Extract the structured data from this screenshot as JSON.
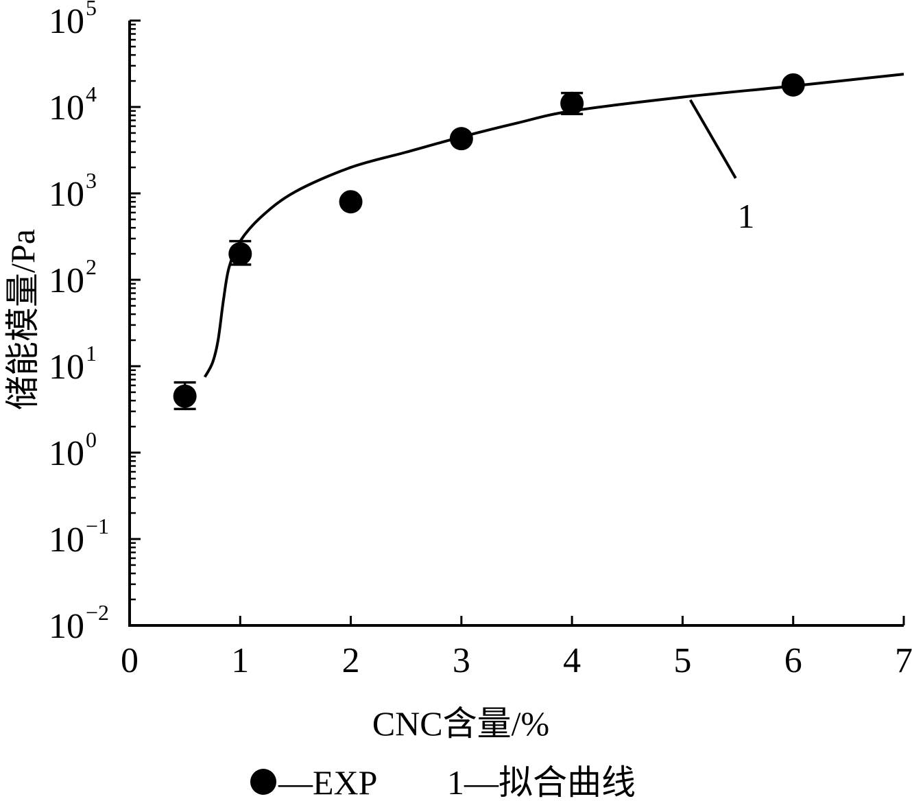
{
  "chart_data": {
    "type": "scatter",
    "xlabel": "CNC含量/%",
    "ylabel": "储能模量/Pa",
    "xlim": [
      0,
      7
    ],
    "ylim": [
      0.01,
      100000
    ],
    "yscale": "log",
    "x_ticks": [
      0,
      1,
      2,
      3,
      4,
      5,
      6,
      7
    ],
    "y_ticks": [
      {
        "value": 0.01,
        "mantissa": "10",
        "exponent": "−2"
      },
      {
        "value": 0.1,
        "mantissa": "10",
        "exponent": "−1"
      },
      {
        "value": 1,
        "mantissa": "10",
        "exponent": "0"
      },
      {
        "value": 10,
        "mantissa": "10",
        "exponent": "1"
      },
      {
        "value": 100,
        "mantissa": "10",
        "exponent": "2"
      },
      {
        "value": 1000,
        "mantissa": "10",
        "exponent": "3"
      },
      {
        "value": 10000,
        "mantissa": "10",
        "exponent": "4"
      },
      {
        "value": 100000,
        "mantissa": "10",
        "exponent": "5"
      }
    ],
    "series": [
      {
        "name": "EXP",
        "marker": "filled-circle",
        "points": [
          {
            "x": 0.5,
            "y": 4.5,
            "err_low": 3.2,
            "err_high": 6.5
          },
          {
            "x": 1.0,
            "y": 200,
            "err_low": 150,
            "err_high": 280
          },
          {
            "x": 2.0,
            "y": 800
          },
          {
            "x": 3.0,
            "y": 4300
          },
          {
            "x": 4.0,
            "y": 11000,
            "err_low": 8300,
            "err_high": 14500
          },
          {
            "x": 6.0,
            "y": 18000
          }
        ]
      },
      {
        "name": "拟合曲线",
        "label": "1",
        "line": "solid",
        "points": [
          {
            "x": 0.68,
            "y": 7.5
          },
          {
            "x": 0.75,
            "y": 11
          },
          {
            "x": 0.8,
            "y": 20
          },
          {
            "x": 0.85,
            "y": 60
          },
          {
            "x": 0.9,
            "y": 140
          },
          {
            "x": 1.0,
            "y": 280
          },
          {
            "x": 1.2,
            "y": 550
          },
          {
            "x": 1.5,
            "y": 1050
          },
          {
            "x": 2.0,
            "y": 2000
          },
          {
            "x": 2.5,
            "y": 3000
          },
          {
            "x": 3.0,
            "y": 4500
          },
          {
            "x": 3.5,
            "y": 6500
          },
          {
            "x": 4.0,
            "y": 9000
          },
          {
            "x": 5.0,
            "y": 13000
          },
          {
            "x": 6.0,
            "y": 17500
          },
          {
            "x": 7.0,
            "y": 24000
          }
        ]
      }
    ],
    "curve_label": "1",
    "legend": {
      "placement": "bottom",
      "exp_text": "—EXP",
      "fit_text": "1—拟合曲线"
    }
  }
}
